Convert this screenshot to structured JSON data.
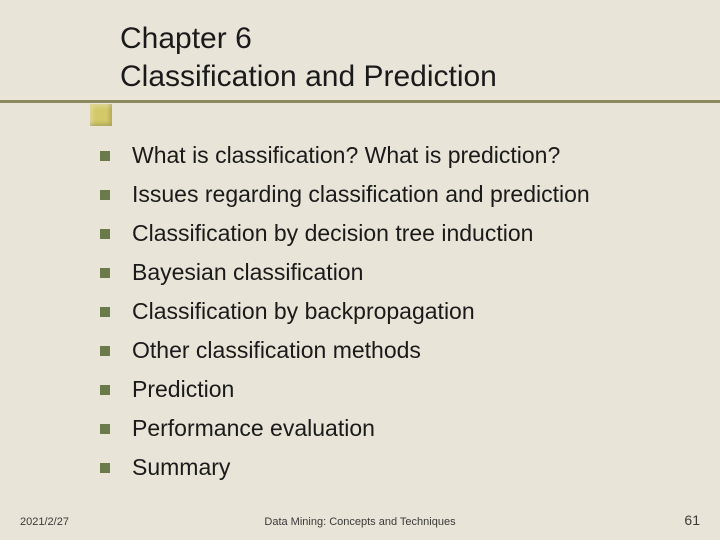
{
  "slide": {
    "title_line1": "Chapter 6",
    "title_line2": "Classification and Prediction",
    "title_fontsize": 30,
    "title_color": "#1a1a1a",
    "accent_color": "#d4c968",
    "underline_color": "#8a8a5c",
    "bullet_color": "#6b7a4a",
    "bullet_size": 10,
    "body_fontsize": 23,
    "body_color": "#1a1a1a",
    "background_color": "#e8e4d8",
    "items": [
      "What is classification? What is prediction?",
      "Issues regarding classification and prediction",
      "Classification by decision tree induction",
      "Bayesian classification",
      "Classification by backpropagation",
      "Other classification methods",
      "Prediction",
      "Performance evaluation",
      "Summary"
    ]
  },
  "footer": {
    "date": "2021/2/27",
    "center": "Data Mining: Concepts and Techniques",
    "page": "61",
    "fontsize": 11,
    "color": "#3a3a3a"
  }
}
